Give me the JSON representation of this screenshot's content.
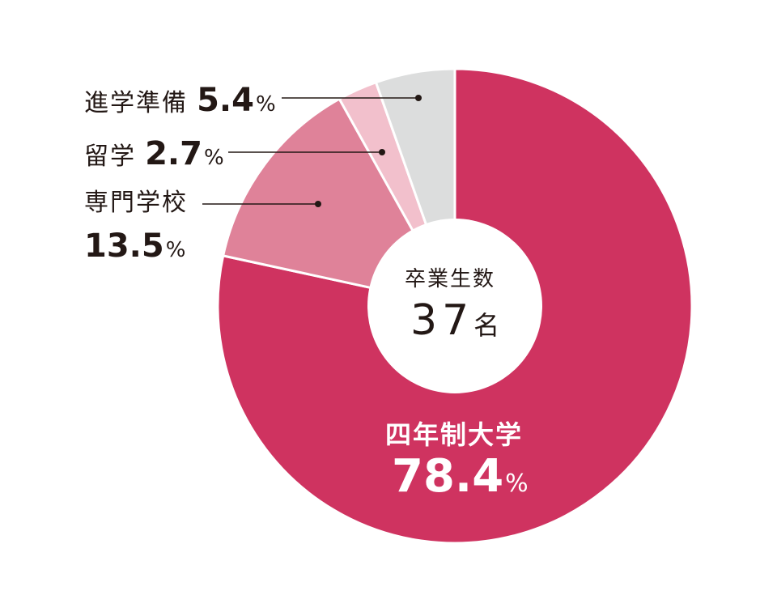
{
  "chart_data": {
    "type": "pie",
    "center_title": "卒業生数",
    "center_count": "37",
    "center_unit": "名",
    "slices": [
      {
        "label": "四年制大学",
        "value": 78.4,
        "value_text": "78.4",
        "unit": "%",
        "color": "#cf3360"
      },
      {
        "label": "専門学校",
        "value": 13.5,
        "value_text": "13.5",
        "unit": "%",
        "color": "#df8299"
      },
      {
        "label": "留学",
        "value": 2.7,
        "value_text": "2.7",
        "unit": "%",
        "color": "#f2c0cc"
      },
      {
        "label": "進学準備",
        "value": 5.4,
        "value_text": "5.4",
        "unit": "%",
        "color": "#dcdddd"
      }
    ]
  }
}
